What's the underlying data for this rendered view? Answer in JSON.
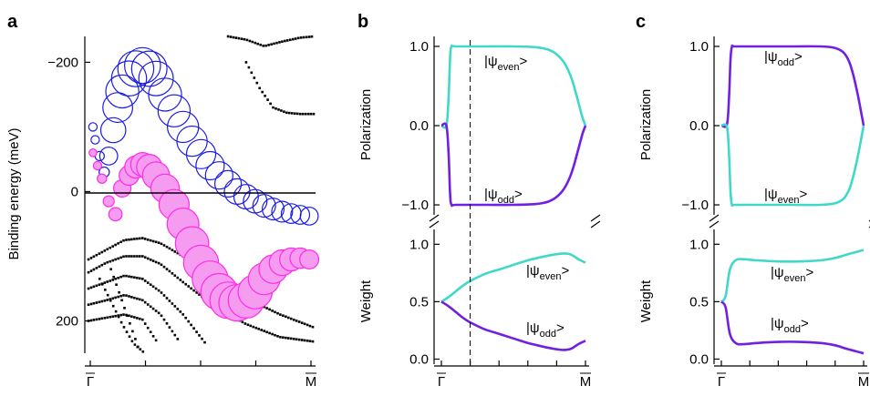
{
  "colors": {
    "blue_band": "#1c1ce8",
    "magenta_band": "#ff2de6",
    "magenta_fill": "#f59bf0",
    "cyan": "#40d8c8",
    "purple": "#7020e0",
    "black": "#000000"
  },
  "panel_letters": [
    "a",
    "b",
    "c"
  ],
  "chart_data": [
    {
      "id": "a",
      "type": "scatter",
      "ylabel": "Binding energy (meV)",
      "ylim": [
        250,
        -240
      ],
      "yticks": [
        -200,
        0,
        200
      ],
      "ytick_labels": [
        "−200",
        "0",
        "200"
      ],
      "xtick_labels": [
        "Γ",
        "M"
      ],
      "xlim": [
        0,
        1
      ],
      "zero_line": 0,
      "series": [
        {
          "role": "upper_band",
          "style": "open-circles",
          "color": "blue",
          "x": [
            0.02,
            0.03,
            0.05,
            0.07,
            0.09,
            0.11,
            0.13,
            0.15,
            0.18,
            0.21,
            0.24,
            0.27,
            0.3,
            0.34,
            0.38,
            0.42,
            0.46,
            0.5,
            0.54,
            0.58,
            0.62,
            0.66,
            0.7,
            0.74,
            0.78,
            0.82,
            0.86,
            0.9,
            0.94,
            0.98
          ],
          "y": [
            -100,
            -80,
            -55,
            -30,
            -55,
            -95,
            -130,
            -155,
            -175,
            -190,
            -195,
            -190,
            -175,
            -150,
            -125,
            -100,
            -78,
            -58,
            -40,
            -25,
            -12,
            0,
            8,
            15,
            22,
            27,
            31,
            34,
            36,
            38
          ],
          "weight": [
            0.1,
            0.1,
            0.12,
            0.14,
            0.3,
            0.45,
            0.55,
            0.62,
            0.66,
            0.68,
            0.68,
            0.67,
            0.65,
            0.62,
            0.6,
            0.58,
            0.56,
            0.54,
            0.52,
            0.5,
            0.48,
            0.46,
            0.44,
            0.42,
            0.4,
            0.38,
            0.36,
            0.34,
            0.32,
            0.3
          ]
        },
        {
          "role": "lower_band",
          "style": "filled-circles",
          "color": "magenta",
          "x": [
            0.02,
            0.04,
            0.06,
            0.09,
            0.12,
            0.15,
            0.18,
            0.21,
            0.24,
            0.27,
            0.3,
            0.34,
            0.38,
            0.42,
            0.46,
            0.5,
            0.54,
            0.58,
            0.62,
            0.66,
            0.7,
            0.74,
            0.78,
            0.82,
            0.86,
            0.9,
            0.94,
            0.98
          ],
          "y": [
            -60,
            -40,
            -20,
            15,
            35,
            -5,
            -25,
            -38,
            -42,
            -38,
            -25,
            -5,
            20,
            50,
            80,
            110,
            135,
            155,
            168,
            172,
            168,
            155,
            135,
            120,
            110,
            105,
            103,
            105
          ],
          "weight": [
            0.1,
            0.12,
            0.14,
            0.18,
            0.24,
            0.34,
            0.4,
            0.46,
            0.5,
            0.54,
            0.58,
            0.62,
            0.66,
            0.7,
            0.74,
            0.78,
            0.8,
            0.82,
            0.82,
            0.82,
            0.8,
            0.76,
            0.7,
            0.62,
            0.55,
            0.48,
            0.42,
            0.38
          ]
        },
        {
          "role": "background_bands",
          "style": "dots",
          "color": "black",
          "curves": [
            {
              "x": [
                0.62,
                0.7,
                0.78,
                0.86,
                0.94,
                1.0
              ],
              "y": [
                -240,
                -235,
                -225,
                -232,
                -238,
                -240
              ]
            },
            {
              "x": [
                0.7,
                0.76,
                0.82,
                0.88,
                0.94,
                1.0
              ],
              "y": [
                -200,
                -160,
                -130,
                -122,
                -120,
                -120
              ]
            },
            {
              "x": [
                0.0,
                0.08,
                0.16,
                0.24,
                0.32,
                0.42,
                0.55,
                0.7,
                0.85,
                1.0
              ],
              "y": [
                105,
                90,
                75,
                72,
                80,
                100,
                135,
                165,
                190,
                210
              ]
            },
            {
              "x": [
                0.0,
                0.08,
                0.16,
                0.24,
                0.32,
                0.42,
                0.55,
                0.7,
                0.85,
                1.0
              ],
              "y": [
                125,
                110,
                100,
                100,
                112,
                140,
                175,
                205,
                225,
                232
              ]
            },
            {
              "x": [
                0.0,
                0.08,
                0.16,
                0.24,
                0.32,
                0.42,
                0.52
              ],
              "y": [
                150,
                140,
                130,
                135,
                155,
                190,
                235
              ]
            },
            {
              "x": [
                0.0,
                0.08,
                0.16,
                0.24,
                0.32,
                0.4
              ],
              "y": [
                175,
                168,
                160,
                168,
                190,
                230
              ]
            },
            {
              "x": [
                0.0,
                0.08,
                0.16,
                0.24,
                0.3
              ],
              "y": [
                200,
                195,
                190,
                198,
                230
              ]
            },
            {
              "x": [
                0.05,
                0.1,
                0.15,
                0.2,
                0.25
              ],
              "y": [
                135,
                170,
                205,
                235,
                250
              ]
            },
            {
              "x": [
                0.1,
                0.14,
                0.18,
                0.22
              ],
              "y": [
                120,
                160,
                200,
                240
              ]
            }
          ]
        }
      ]
    },
    {
      "id": "b",
      "type": "line",
      "top": {
        "ylabel": "Polarization",
        "ylim": [
          -1.08,
          1.08
        ],
        "yticks": [
          1.0,
          0.0,
          -1.0
        ],
        "ytick_labels": [
          "1.0",
          "0.0",
          "−1.0"
        ],
        "series": [
          {
            "color": "cyan",
            "x": [
              0.0,
              0.035,
              0.05,
              0.06,
              0.07,
              0.1,
              0.3,
              0.5,
              0.65,
              0.74,
              0.8,
              0.85,
              0.89,
              0.92,
              0.95,
              0.98,
              1.0
            ],
            "y": [
              0.0,
              0.0,
              0.35,
              0.85,
              1.0,
              1.0,
              1.0,
              1.0,
              0.99,
              0.96,
              0.9,
              0.8,
              0.66,
              0.5,
              0.3,
              0.1,
              0.0
            ]
          },
          {
            "color": "purple",
            "x": [
              0.0,
              0.035,
              0.05,
              0.06,
              0.07,
              0.1,
              0.3,
              0.5,
              0.65,
              0.74,
              0.8,
              0.85,
              0.89,
              0.92,
              0.95,
              0.98,
              1.0
            ],
            "y": [
              0.0,
              0.0,
              -0.35,
              -0.85,
              -1.0,
              -1.0,
              -1.0,
              -1.0,
              -0.99,
              -0.96,
              -0.9,
              -0.8,
              -0.66,
              -0.5,
              -0.3,
              -0.1,
              0.0
            ]
          }
        ],
        "annotations": [
          {
            "main": "|ψ",
            "sub": "even",
            "tail": ">"
          },
          {
            "main": "|ψ",
            "sub": "odd",
            "tail": ">"
          }
        ]
      },
      "bottom": {
        "ylabel": "Weight",
        "ylim": [
          -0.02,
          1.05
        ],
        "yticks": [
          1.0,
          0.5,
          0.0
        ],
        "ytick_labels": [
          "1.0",
          "0.5",
          "0.0"
        ],
        "series": [
          {
            "color": "cyan",
            "x": [
              0.0,
              0.05,
              0.1,
              0.15,
              0.2,
              0.3,
              0.4,
              0.5,
              0.6,
              0.7,
              0.78,
              0.85,
              0.9,
              0.95,
              1.0
            ],
            "y": [
              0.5,
              0.54,
              0.59,
              0.64,
              0.68,
              0.74,
              0.78,
              0.82,
              0.86,
              0.89,
              0.91,
              0.92,
              0.91,
              0.87,
              0.84
            ]
          },
          {
            "color": "purple",
            "x": [
              0.0,
              0.05,
              0.1,
              0.15,
              0.2,
              0.3,
              0.4,
              0.5,
              0.6,
              0.7,
              0.78,
              0.85,
              0.9,
              0.95,
              1.0
            ],
            "y": [
              0.5,
              0.46,
              0.41,
              0.36,
              0.32,
              0.26,
              0.22,
              0.18,
              0.14,
              0.11,
              0.09,
              0.08,
              0.09,
              0.13,
              0.16
            ]
          }
        ],
        "annotations": [
          {
            "main": "|ψ",
            "sub": "even",
            "tail": ">"
          },
          {
            "main": "|ψ",
            "sub": "odd",
            "tail": ">"
          }
        ]
      },
      "xtick_labels": [
        "Γ",
        "M"
      ],
      "dashed_marker_x": 0.2
    },
    {
      "id": "c",
      "type": "line",
      "top": {
        "ylabel": "Polarization",
        "ylim": [
          -1.08,
          1.08
        ],
        "yticks": [
          1.0,
          0.0,
          -1.0
        ],
        "ytick_labels": [
          "1.0",
          "0.0",
          "−1.0"
        ],
        "series": [
          {
            "color": "purple",
            "x": [
              0.0,
              0.04,
              0.055,
              0.065,
              0.075,
              0.1,
              0.3,
              0.5,
              0.7,
              0.8,
              0.86,
              0.9,
              0.93,
              0.96,
              0.99,
              1.0
            ],
            "y": [
              0.0,
              0.02,
              0.4,
              0.85,
              1.0,
              1.0,
              1.0,
              1.0,
              1.0,
              0.98,
              0.92,
              0.8,
              0.62,
              0.38,
              0.1,
              0.0
            ]
          },
          {
            "color": "cyan",
            "x": [
              0.0,
              0.04,
              0.055,
              0.065,
              0.075,
              0.1,
              0.3,
              0.5,
              0.7,
              0.8,
              0.86,
              0.9,
              0.93,
              0.96,
              0.99,
              1.0
            ],
            "y": [
              0.0,
              -0.02,
              -0.4,
              -0.85,
              -1.0,
              -1.0,
              -1.0,
              -1.0,
              -1.0,
              -0.98,
              -0.92,
              -0.8,
              -0.62,
              -0.38,
              -0.1,
              0.0
            ]
          }
        ],
        "annotations": [
          {
            "main": "|ψ",
            "sub": "odd",
            "tail": ">"
          },
          {
            "main": "|ψ",
            "sub": "even",
            "tail": ">"
          }
        ]
      },
      "bottom": {
        "ylabel": "Weight",
        "ylim": [
          -0.02,
          1.05
        ],
        "yticks": [
          1.0,
          0.5,
          0.0
        ],
        "ytick_labels": [
          "1.0",
          "0.5",
          "0.0"
        ],
        "series": [
          {
            "color": "cyan",
            "x": [
              0.0,
              0.03,
              0.06,
              0.1,
              0.15,
              0.25,
              0.4,
              0.55,
              0.7,
              0.8,
              0.88,
              0.94,
              1.0
            ],
            "y": [
              0.5,
              0.55,
              0.78,
              0.86,
              0.87,
              0.86,
              0.85,
              0.85,
              0.86,
              0.88,
              0.91,
              0.93,
              0.95
            ]
          },
          {
            "color": "purple",
            "x": [
              0.0,
              0.03,
              0.06,
              0.1,
              0.15,
              0.25,
              0.4,
              0.55,
              0.7,
              0.8,
              0.88,
              0.94,
              1.0
            ],
            "y": [
              0.5,
              0.45,
              0.22,
              0.14,
              0.13,
              0.14,
              0.15,
              0.15,
              0.14,
              0.12,
              0.09,
              0.07,
              0.05
            ]
          }
        ],
        "annotations": [
          {
            "main": "|ψ",
            "sub": "even",
            "tail": ">"
          },
          {
            "main": "|ψ",
            "sub": "odd",
            "tail": ">"
          }
        ]
      },
      "xtick_labels": [
        "Γ",
        "M"
      ]
    }
  ]
}
